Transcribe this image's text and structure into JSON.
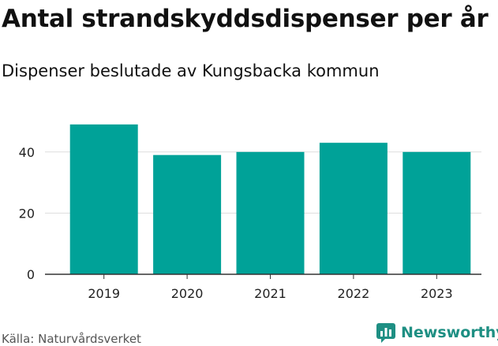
{
  "title": "Antal strandskyddsdispenser per år",
  "subtitle": "Dispenser beslutade av Kungsbacka kommun",
  "source": "Källa: Naturvårdsverket",
  "brand": "Newsworthy",
  "colors": {
    "bar": "#00a298",
    "grid": "#dddddd",
    "axis": "#333333",
    "brand": "#1e8f83"
  },
  "chart_data": {
    "type": "bar",
    "title": "Antal strandskyddsdispenser per år",
    "subtitle": "Dispenser beslutade av Kungsbacka kommun",
    "xlabel": "",
    "ylabel": "",
    "categories": [
      "2019",
      "2020",
      "2021",
      "2022",
      "2023"
    ],
    "values": [
      49,
      39,
      40,
      43,
      40
    ],
    "ylim": [
      0,
      50
    ],
    "yticks": [
      0,
      20,
      40
    ],
    "grid": true,
    "legend": "none"
  }
}
